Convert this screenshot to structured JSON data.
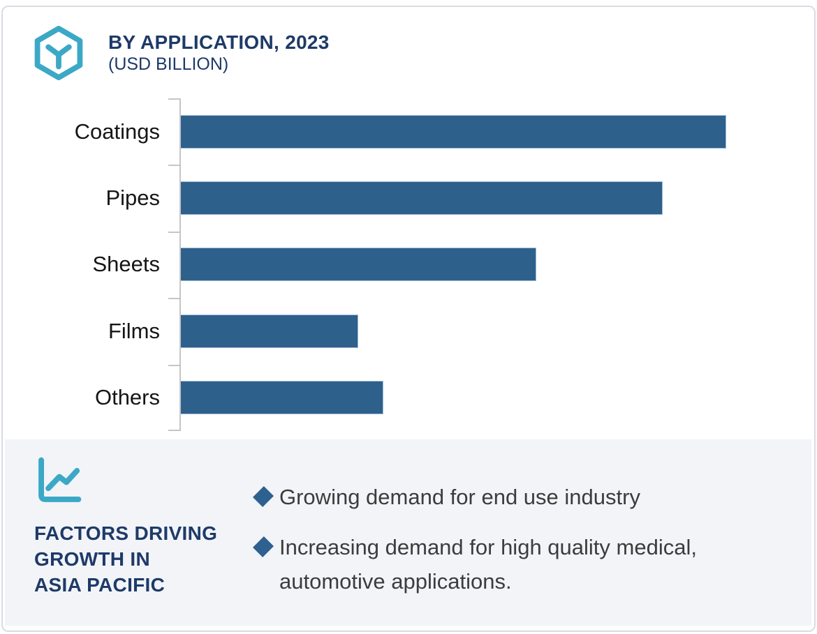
{
  "header": {
    "title": "BY APPLICATION, 2023",
    "subtitle": "(USD BILLION)",
    "logo_icon": "hexagon-y-logo"
  },
  "chart_data": {
    "type": "bar",
    "orientation": "horizontal",
    "title": "BY APPLICATION, 2023 (USD BILLION)",
    "categories": [
      "Coatings",
      "Pipes",
      "Sheets",
      "Films",
      "Others"
    ],
    "values_pct_of_max": [
      100,
      88.3,
      65.2,
      32.5,
      37.1
    ],
    "value_axis": "unlabeled (no ticks, gridlines or data labels shown)",
    "legend": "none",
    "bar_color": "#2e608c",
    "axis_color": "#c6c6c6"
  },
  "factors_panel": {
    "icon": "line-chart-icon",
    "heading_lines": [
      "FACTORS DRIVING",
      "GROWTH IN",
      "ASIA PACIFIC"
    ],
    "bullets": [
      "Growing demand for end use industry",
      "Increasing demand for high quality medical, automotive applications."
    ],
    "bullet_marker": "diamond",
    "panel_bg": "#f2f4f8",
    "accent_teal": "#3ba8c6",
    "accent_navy": "#1e3a68",
    "bullet_color": "#2e6090"
  }
}
